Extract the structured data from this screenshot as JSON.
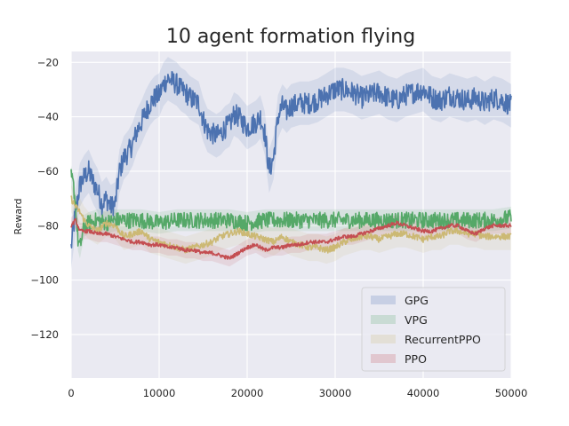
{
  "chart_data": {
    "type": "line",
    "title": "10 agent formation flying",
    "xlabel": "",
    "ylabel": "Reward",
    "xlim": [
      0,
      50000
    ],
    "ylim": [
      -136,
      -16
    ],
    "xticks": [
      0,
      10000,
      20000,
      30000,
      40000,
      50000
    ],
    "xtick_labels": [
      "0",
      "10000",
      "20000",
      "30000",
      "40000",
      "50000"
    ],
    "yticks": [
      -120,
      -100,
      -80,
      -60,
      -40,
      -20
    ],
    "ytick_labels": [
      "−120",
      "−100",
      "−80",
      "−60",
      "−40",
      "−20"
    ],
    "grid": true,
    "legend_position": "lower-right",
    "series": [
      {
        "name": "GPG",
        "color": "#4c72b0",
        "noise": 4,
        "band": 8,
        "x": [
          0,
          500,
          1000,
          1500,
          2000,
          2500,
          3000,
          3500,
          4000,
          4500,
          5000,
          5500,
          6000,
          6500,
          7000,
          7500,
          8000,
          8500,
          9000,
          9500,
          10000,
          10500,
          11000,
          11500,
          12000,
          12500,
          13000,
          13500,
          14000,
          14500,
          15000,
          15500,
          16000,
          16500,
          17000,
          17500,
          18000,
          18500,
          19000,
          19500,
          20000,
          20500,
          21000,
          21500,
          22000,
          22500,
          23000,
          23500,
          24000,
          24500,
          25000,
          26000,
          27000,
          28000,
          29000,
          30000,
          31000,
          32000,
          33000,
          34000,
          35000,
          36000,
          37000,
          38000,
          39000,
          40000,
          41000,
          42000,
          43000,
          44000,
          45000,
          46000,
          47000,
          48000,
          49000,
          50000
        ],
        "y": [
          -88,
          -75,
          -65,
          -62,
          -60,
          -64,
          -67,
          -72,
          -70,
          -73,
          -72,
          -60,
          -55,
          -53,
          -50,
          -45,
          -42,
          -38,
          -35,
          -33,
          -32,
          -28,
          -26,
          -27,
          -28,
          -30,
          -31,
          -33,
          -34,
          -35,
          -41,
          -45,
          -46,
          -47,
          -46,
          -44,
          -43,
          -39,
          -40,
          -42,
          -44,
          -43,
          -42,
          -40,
          -46,
          -60,
          -55,
          -40,
          -36,
          -38,
          -36,
          -35,
          -35,
          -34,
          -32,
          -30,
          -30,
          -31,
          -33,
          -32,
          -31,
          -33,
          -34,
          -32,
          -31,
          -30,
          -33,
          -34,
          -32,
          -33,
          -34,
          -33,
          -35,
          -33,
          -34,
          -36
        ]
      },
      {
        "name": "VPG",
        "color": "#55a868",
        "noise": 3,
        "band": 4,
        "x": [
          0,
          250,
          500,
          750,
          1000,
          1500,
          2000,
          3000,
          4000,
          5000,
          6000,
          8000,
          10000,
          12000,
          14000,
          16000,
          18000,
          20000,
          22000,
          24000,
          26000,
          28000,
          30000,
          32000,
          34000,
          36000,
          38000,
          40000,
          42000,
          44000,
          46000,
          48000,
          50000
        ],
        "y": [
          -62,
          -65,
          -72,
          -85,
          -88,
          -80,
          -79,
          -78,
          -79,
          -78,
          -78,
          -78,
          -79,
          -78,
          -78,
          -78,
          -78,
          -79,
          -78,
          -78,
          -78,
          -78,
          -78,
          -78,
          -78,
          -78,
          -78,
          -78,
          -78,
          -78,
          -78,
          -78,
          -77
        ]
      },
      {
        "name": "RecurrentPPO",
        "color": "#ccb974",
        "noise": 1.2,
        "band": 5,
        "x": [
          0,
          500,
          1000,
          1500,
          2000,
          3000,
          4000,
          5000,
          6000,
          7000,
          8000,
          9000,
          10000,
          11000,
          12000,
          13000,
          14000,
          15000,
          16000,
          17000,
          18000,
          19000,
          20000,
          21000,
          22000,
          23000,
          24000,
          25000,
          26000,
          27000,
          28000,
          29000,
          30000,
          31000,
          32000,
          33000,
          34000,
          35000,
          36000,
          37000,
          38000,
          39000,
          40000,
          41000,
          42000,
          43000,
          44000,
          45000,
          46000,
          47000,
          48000,
          49000,
          50000
        ],
        "y": [
          -70,
          -73,
          -75,
          -78,
          -80,
          -82,
          -79,
          -80,
          -84,
          -83,
          -82,
          -85,
          -86,
          -87,
          -88,
          -89,
          -88,
          -87,
          -86,
          -84,
          -83,
          -82,
          -83,
          -84,
          -85,
          -86,
          -84,
          -86,
          -87,
          -88,
          -88,
          -89,
          -88,
          -86,
          -85,
          -84,
          -84,
          -85,
          -84,
          -83,
          -83,
          -84,
          -85,
          -84,
          -84,
          -82,
          -82,
          -83,
          -83,
          -84,
          -84,
          -84,
          -84
        ]
      },
      {
        "name": "PPO",
        "color": "#c44e52",
        "noise": 0.7,
        "band": 3,
        "x": [
          0,
          500,
          1000,
          2000,
          3000,
          4000,
          5000,
          6000,
          7000,
          8000,
          9000,
          10000,
          11000,
          12000,
          13000,
          14000,
          15000,
          16000,
          17000,
          18000,
          19000,
          20000,
          21000,
          22000,
          23000,
          24000,
          25000,
          26000,
          27000,
          28000,
          29000,
          30000,
          31000,
          32000,
          33000,
          34000,
          35000,
          36000,
          37000,
          38000,
          39000,
          40000,
          41000,
          42000,
          43000,
          44000,
          45000,
          46000,
          47000,
          48000,
          49000,
          50000
        ],
        "y": [
          -80,
          -78,
          -82,
          -82,
          -83,
          -83,
          -84,
          -85,
          -86,
          -86,
          -87,
          -87,
          -88,
          -88,
          -89,
          -89,
          -90,
          -90,
          -91,
          -92,
          -90,
          -88,
          -87,
          -89,
          -88,
          -88,
          -87,
          -87,
          -86,
          -86,
          -86,
          -85,
          -84,
          -84,
          -83,
          -82,
          -81,
          -80,
          -79,
          -80,
          -81,
          -82,
          -82,
          -81,
          -80,
          -80,
          -82,
          -83,
          -81,
          -80,
          -80,
          -80
        ]
      }
    ]
  }
}
